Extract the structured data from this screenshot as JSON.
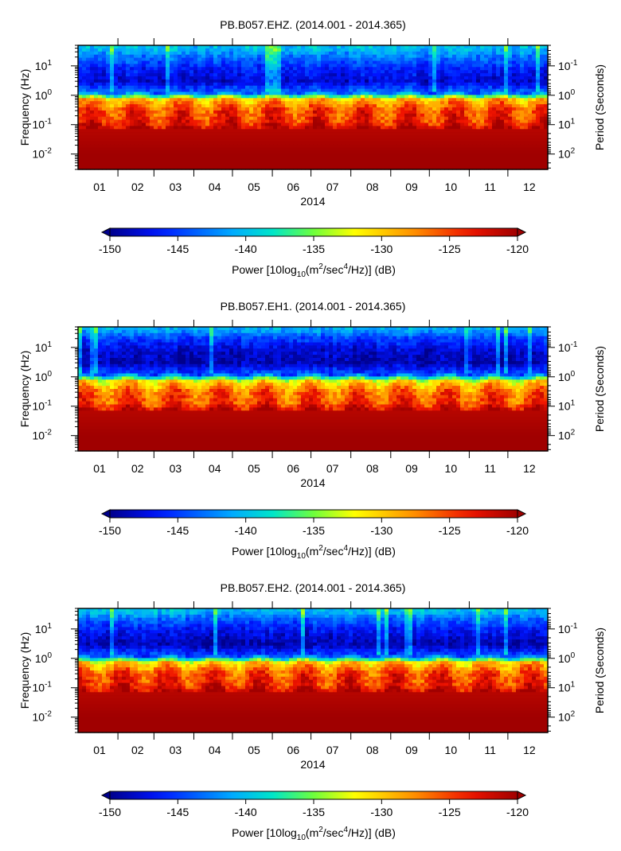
{
  "chart_data": [
    {
      "type": "heatmap",
      "title": "PB.B057.EHZ. (2014.001 - 2014.365)",
      "xlabel": "2014",
      "ylabel": "Frequency (Hz)",
      "y2label": "Period (Seconds)",
      "x_ticks": [
        "01",
        "02",
        "03",
        "04",
        "05",
        "06",
        "07",
        "08",
        "09",
        "10",
        "11",
        "12"
      ],
      "y_ticks": [
        {
          "label": "10",
          "exp": "1"
        },
        {
          "label": "10",
          "exp": "0"
        },
        {
          "label": "10",
          "exp": "-1"
        },
        {
          "label": "10",
          "exp": "-2"
        }
      ],
      "y2_ticks": [
        {
          "label": "10",
          "exp": "-1"
        },
        {
          "label": "10",
          "exp": "0"
        },
        {
          "label": "10",
          "exp": "1"
        },
        {
          "label": "10",
          "exp": "2"
        }
      ],
      "y_scale": "log",
      "ylim": [
        0.003,
        50
      ],
      "xlim": [
        "2014.001",
        "2014.365"
      ],
      "colorbar": {
        "min": -150,
        "max": -120,
        "ticks": [
          "-150",
          "-145",
          "-140",
          "-135",
          "-130",
          "-125",
          "-120"
        ],
        "label_prefix": "Power [10log",
        "label_sub": "10",
        "label_mid": "(m",
        "label_sup1": "2",
        "label_mid2": "/sec",
        "label_sup2": "4",
        "label_suffix": "/Hz)] (dB)"
      },
      "power_profile_db": [
        {
          "freq_hz": 40,
          "power_db": -140
        },
        {
          "freq_hz": 20,
          "power_db": -143
        },
        {
          "freq_hz": 8,
          "power_db": -146
        },
        {
          "freq_hz": 3,
          "power_db": -148
        },
        {
          "freq_hz": 1.2,
          "power_db": -143
        },
        {
          "freq_hz": 0.7,
          "power_db": -129
        },
        {
          "freq_hz": 0.3,
          "power_db": -125
        },
        {
          "freq_hz": 0.12,
          "power_db": -124
        },
        {
          "freq_hz": 0.07,
          "power_db": -121
        },
        {
          "freq_hz": 0.01,
          "power_db": -120
        }
      ]
    },
    {
      "type": "heatmap",
      "title": "PB.B057.EH1. (2014.001 - 2014.365)",
      "xlabel": "2014",
      "ylabel": "Frequency (Hz)",
      "y2label": "Period (Seconds)",
      "x_ticks": [
        "01",
        "02",
        "03",
        "04",
        "05",
        "06",
        "07",
        "08",
        "09",
        "10",
        "11",
        "12"
      ],
      "y_ticks": [
        {
          "label": "10",
          "exp": "1"
        },
        {
          "label": "10",
          "exp": "0"
        },
        {
          "label": "10",
          "exp": "-1"
        },
        {
          "label": "10",
          "exp": "-2"
        }
      ],
      "y2_ticks": [
        {
          "label": "10",
          "exp": "-1"
        },
        {
          "label": "10",
          "exp": "0"
        },
        {
          "label": "10",
          "exp": "1"
        },
        {
          "label": "10",
          "exp": "2"
        }
      ],
      "y_scale": "log",
      "ylim": [
        0.003,
        50
      ],
      "xlim": [
        "2014.001",
        "2014.365"
      ],
      "colorbar": {
        "min": -150,
        "max": -120,
        "ticks": [
          "-150",
          "-145",
          "-140",
          "-135",
          "-130",
          "-125",
          "-120"
        ],
        "label_prefix": "Power [10log",
        "label_sub": "10",
        "label_mid": "(m",
        "label_sup1": "2",
        "label_mid2": "/sec",
        "label_sup2": "4",
        "label_suffix": "/Hz)] (dB)"
      },
      "power_profile_db": [
        {
          "freq_hz": 40,
          "power_db": -141
        },
        {
          "freq_hz": 20,
          "power_db": -145
        },
        {
          "freq_hz": 8,
          "power_db": -148
        },
        {
          "freq_hz": 3,
          "power_db": -149
        },
        {
          "freq_hz": 1.2,
          "power_db": -144
        },
        {
          "freq_hz": 0.7,
          "power_db": -131
        },
        {
          "freq_hz": 0.3,
          "power_db": -126
        },
        {
          "freq_hz": 0.12,
          "power_db": -125
        },
        {
          "freq_hz": 0.07,
          "power_db": -121
        },
        {
          "freq_hz": 0.01,
          "power_db": -120
        }
      ]
    },
    {
      "type": "heatmap",
      "title": "PB.B057.EH2. (2014.001 - 2014.365)",
      "xlabel": "2014",
      "ylabel": "Frequency (Hz)",
      "y2label": "Period (Seconds)",
      "x_ticks": [
        "01",
        "02",
        "03",
        "04",
        "05",
        "06",
        "07",
        "08",
        "09",
        "10",
        "11",
        "12"
      ],
      "y_ticks": [
        {
          "label": "10",
          "exp": "1"
        },
        {
          "label": "10",
          "exp": "0"
        },
        {
          "label": "10",
          "exp": "-1"
        },
        {
          "label": "10",
          "exp": "-2"
        }
      ],
      "y2_ticks": [
        {
          "label": "10",
          "exp": "-1"
        },
        {
          "label": "10",
          "exp": "0"
        },
        {
          "label": "10",
          "exp": "1"
        },
        {
          "label": "10",
          "exp": "2"
        }
      ],
      "y_scale": "log",
      "ylim": [
        0.003,
        50
      ],
      "xlim": [
        "2014.001",
        "2014.365"
      ],
      "colorbar": {
        "min": -150,
        "max": -120,
        "ticks": [
          "-150",
          "-145",
          "-140",
          "-135",
          "-130",
          "-125",
          "-120"
        ],
        "label_prefix": "Power [10log",
        "label_sub": "10",
        "label_mid": "(m",
        "label_sup1": "2",
        "label_mid2": "/sec",
        "label_sup2": "4",
        "label_suffix": "/Hz)] (dB)"
      },
      "power_profile_db": [
        {
          "freq_hz": 40,
          "power_db": -140
        },
        {
          "freq_hz": 20,
          "power_db": -144
        },
        {
          "freq_hz": 8,
          "power_db": -147
        },
        {
          "freq_hz": 3,
          "power_db": -149
        },
        {
          "freq_hz": 1.2,
          "power_db": -144
        },
        {
          "freq_hz": 0.7,
          "power_db": -130
        },
        {
          "freq_hz": 0.3,
          "power_db": -125
        },
        {
          "freq_hz": 0.12,
          "power_db": -124
        },
        {
          "freq_hz": 0.07,
          "power_db": -121
        },
        {
          "freq_hz": 0.01,
          "power_db": -120
        }
      ]
    }
  ]
}
